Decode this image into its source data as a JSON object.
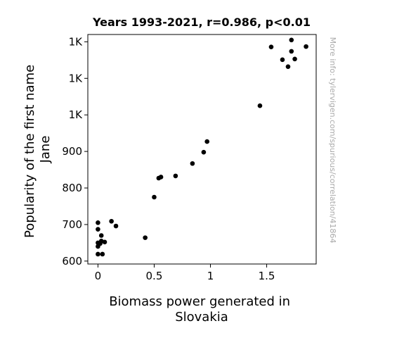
{
  "chart_data": {
    "type": "scatter",
    "title": "Years 1993-2021, r=0.986, p<0.01",
    "xlabel_lines": [
      "Biomass power generated in",
      "Slovakia"
    ],
    "ylabel_lines": [
      "Popularity of the first name",
      "Jane"
    ],
    "side_note": "More info: tylervigen.com/spurious/correlation/41864",
    "xlim": [
      -0.09,
      1.94
    ],
    "ylim": [
      592,
      1220
    ],
    "x_ticks": [
      {
        "value": 0,
        "label": "0"
      },
      {
        "value": 0.5,
        "label": "0.5"
      },
      {
        "value": 1,
        "label": "1"
      },
      {
        "value": 1.5,
        "label": "1.5"
      }
    ],
    "y_ticks": [
      {
        "value": 600,
        "label": "600"
      },
      {
        "value": 700,
        "label": "700"
      },
      {
        "value": 800,
        "label": "800"
      },
      {
        "value": 900,
        "label": "900"
      },
      {
        "value": 1000,
        "label": "1K"
      },
      {
        "value": 1100,
        "label": "1K"
      },
      {
        "value": 1200,
        "label": "1K"
      }
    ],
    "marker_color": "#000000",
    "points": [
      {
        "x": 0.0,
        "y": 705
      },
      {
        "x": 0.0,
        "y": 687
      },
      {
        "x": 0.0,
        "y": 650
      },
      {
        "x": 0.0,
        "y": 640
      },
      {
        "x": 0.0,
        "y": 619
      },
      {
        "x": 0.02,
        "y": 648
      },
      {
        "x": 0.03,
        "y": 670
      },
      {
        "x": 0.03,
        "y": 655
      },
      {
        "x": 0.04,
        "y": 619
      },
      {
        "x": 0.06,
        "y": 652
      },
      {
        "x": 0.12,
        "y": 709
      },
      {
        "x": 0.16,
        "y": 696
      },
      {
        "x": 0.42,
        "y": 664
      },
      {
        "x": 0.5,
        "y": 775
      },
      {
        "x": 0.54,
        "y": 827
      },
      {
        "x": 0.56,
        "y": 830
      },
      {
        "x": 0.69,
        "y": 833
      },
      {
        "x": 0.84,
        "y": 867
      },
      {
        "x": 0.94,
        "y": 898
      },
      {
        "x": 0.97,
        "y": 927
      },
      {
        "x": 1.44,
        "y": 1025
      },
      {
        "x": 1.54,
        "y": 1186
      },
      {
        "x": 1.64,
        "y": 1151
      },
      {
        "x": 1.69,
        "y": 1132
      },
      {
        "x": 1.72,
        "y": 1205
      },
      {
        "x": 1.72,
        "y": 1174
      },
      {
        "x": 1.75,
        "y": 1153
      },
      {
        "x": 1.85,
        "y": 1187
      }
    ]
  }
}
